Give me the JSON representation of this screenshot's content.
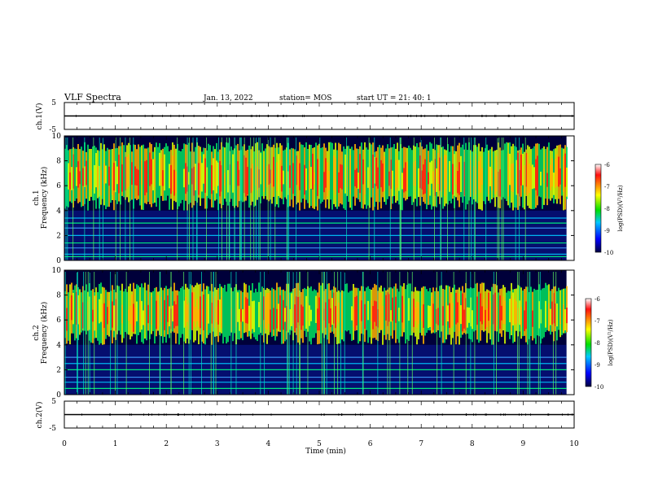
{
  "header": {
    "title": "VLF Spectra",
    "date": "Jan. 13, 2022",
    "station": "station= MOS",
    "start_ut": "start UT =  21: 40: 1"
  },
  "panels": {
    "ch1_wave_label": "ch.1(V)",
    "ch1_spec_label_a": "ch.1",
    "ch1_spec_label_b": "Frequency (kHz)",
    "ch2_spec_label_a": "ch.2",
    "ch2_spec_label_b": "Frequency (kHz)",
    "ch2_wave_label": "ch.2(V)",
    "x_label": "Time (min)"
  },
  "colorbar": {
    "label": "log(PSD)(V²/Hz)",
    "ticks": [
      -6,
      -7,
      -8,
      -9,
      -10
    ],
    "colors": [
      "#ffffff",
      "#ff1010",
      "#ffff00",
      "#00e000",
      "#00c8ff",
      "#0000ff",
      "#000040"
    ]
  },
  "chart_data": [
    {
      "type": "line",
      "name": "ch.1 waveform",
      "ylabel": "ch.1(V)",
      "ylim": [
        -5,
        5
      ],
      "yticks": [
        5,
        -5
      ],
      "series": [
        {
          "x": [
            0,
            10
          ],
          "y": [
            0,
            0
          ]
        }
      ]
    },
    {
      "type": "heatmap",
      "name": "ch.1 spectrogram",
      "ylabel": "ch.1 Frequency (kHz)",
      "xlim": [
        0,
        10
      ],
      "ylim": [
        0,
        10
      ],
      "yticks": [
        0,
        2,
        4,
        6,
        8,
        10
      ],
      "zlim": [
        -10,
        -6
      ],
      "broadband_band_khz": [
        4,
        9.5
      ],
      "narrowband_lines_khz": [
        0.3,
        0.5,
        1.0,
        1.4,
        2.0,
        2.6,
        3.0,
        3.4
      ],
      "data_end_min": 9.85
    },
    {
      "type": "heatmap",
      "name": "ch.2 spectrogram",
      "ylabel": "ch.2 Frequency (kHz)",
      "xlim": [
        0,
        10
      ],
      "ylim": [
        0,
        10
      ],
      "yticks": [
        0,
        2,
        4,
        6,
        8,
        10
      ],
      "zlim": [
        -10,
        -6
      ],
      "broadband_band_khz": [
        4,
        9
      ],
      "narrowband_lines_khz": [
        0.5,
        1.0,
        1.4,
        2.0,
        2.5,
        3.0
      ],
      "data_end_min": 9.85
    },
    {
      "type": "line",
      "name": "ch.2 waveform",
      "ylabel": "ch.2(V)",
      "xlabel": "Time (min)",
      "xlim": [
        0,
        10
      ],
      "xticks": [
        0,
        1,
        2,
        3,
        4,
        5,
        6,
        7,
        8,
        9,
        10
      ],
      "ylim": [
        -5,
        5
      ],
      "yticks": [
        5,
        -5
      ],
      "series": [
        {
          "x": [
            0,
            10
          ],
          "y": [
            0,
            0
          ]
        }
      ]
    }
  ]
}
